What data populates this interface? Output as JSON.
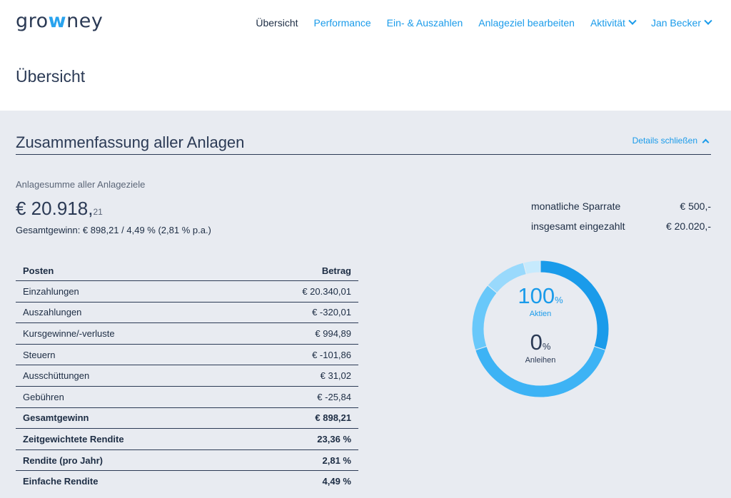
{
  "brand": {
    "logo_prefix": "gro",
    "logo_mid": "w",
    "logo_suffix": "ney"
  },
  "nav": {
    "items": [
      {
        "label": "Übersicht"
      },
      {
        "label": "Performance"
      },
      {
        "label": "Ein- & Auszahlen"
      },
      {
        "label": "Anlageziel bearbeiten"
      },
      {
        "label": "Aktivität"
      },
      {
        "label": "Jan Becker"
      }
    ]
  },
  "page": {
    "title": "Übersicht"
  },
  "summary": {
    "section_title": "Zusammenfassung aller Anlagen",
    "details_link": "Details schließen",
    "sum_label": "Anlagesumme aller Anlageziele",
    "sum_main": "€ 20.918,",
    "sum_cents": "21",
    "gain_text": "Gesamtgewinn: € 898,21 / 4,49 % (2,81 % p.a.)",
    "monthly_label": "monatliche Sparrate",
    "monthly_value": "€ 500,-",
    "paid_label": "insgesamt eingezahlt",
    "paid_value": "€ 20.020,-"
  },
  "table": {
    "headers": [
      "Posten",
      "Betrag"
    ],
    "rows": [
      {
        "label": "Einzahlungen",
        "value": "€ 20.340,01"
      },
      {
        "label": "Auszahlungen",
        "value": "€ -320,01"
      },
      {
        "label": "Kursgewinne/-verluste",
        "value": "€ 994,89"
      },
      {
        "label": "Steuern",
        "value": "€ -101,86"
      },
      {
        "label": "Ausschüttungen",
        "value": "€ 31,02"
      },
      {
        "label": "Gebühren",
        "value": "€ -25,84"
      },
      {
        "label": "Gesamtgewinn",
        "value": "€ 898,21"
      },
      {
        "label": "Zeitgewichtete Rendite",
        "value": "23,36 %"
      },
      {
        "label": "Rendite (pro Jahr)",
        "value": "2,81 %"
      },
      {
        "label": "Einfache Rendite",
        "value": "4,49 %"
      }
    ]
  },
  "allocation": {
    "stocks_pct": "100",
    "stocks_unit": "%",
    "stocks_label": "Aktien",
    "bonds_pct": "0",
    "bonds_unit": "%",
    "bonds_label": "Anleihen",
    "segments": [
      {
        "share": 0.3,
        "color": "#1a9bea"
      },
      {
        "share": 0.4,
        "color": "#3db3f5"
      },
      {
        "share": 0.16,
        "color": "#69c8fa"
      },
      {
        "share": 0.1,
        "color": "#99d9fc"
      },
      {
        "share": 0.04,
        "color": "#c6eafd"
      }
    ]
  }
}
